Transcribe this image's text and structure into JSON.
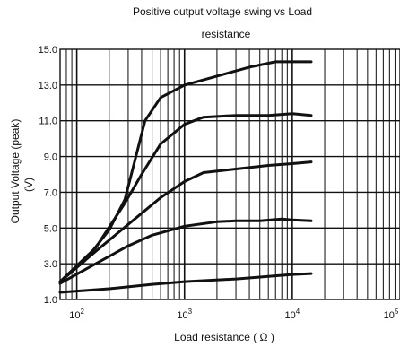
{
  "chart_data": {
    "type": "line",
    "title_line1": "Positive output voltage swing vs Load",
    "title_line2": "resistance",
    "xlabel": "Load resistance ( Ω )",
    "ylabel_line1": "Output Voltage (peak)",
    "ylabel_line2": "(V)",
    "x_scale": "log",
    "xlim": [
      70,
      100000
    ],
    "ylim": [
      1.0,
      15.0
    ],
    "grid": true,
    "legend": "none",
    "line_color": "#111111",
    "x_ticks": [
      {
        "label": "10²",
        "base": "10",
        "exp": "2",
        "value": 100
      },
      {
        "label": "10³",
        "base": "10",
        "exp": "3",
        "value": 1000
      },
      {
        "label": "10⁴",
        "base": "10",
        "exp": "4",
        "value": 10000
      },
      {
        "label": "10⁵",
        "base": "10",
        "exp": "5",
        "value": 100000
      }
    ],
    "y_ticks": [
      {
        "label": "1.0",
        "value": 1.0
      },
      {
        "label": "3.0",
        "value": 3.0
      },
      {
        "label": "5.0",
        "value": 5.0
      },
      {
        "label": "7.0",
        "value": 7.0
      },
      {
        "label": "9.0",
        "value": 9.0
      },
      {
        "label": "11.0",
        "value": 11.0
      },
      {
        "label": "13.0",
        "value": 13.0
      },
      {
        "label": "15.0",
        "value": 15.0
      }
    ],
    "series": [
      {
        "x": [
          70,
          120,
          200,
          280,
          350,
          430,
          600,
          1000,
          2000,
          4000,
          7000,
          10000,
          15000
        ],
        "y": [
          2.0,
          3.2,
          4.9,
          6.6,
          8.9,
          11.0,
          12.3,
          13.0,
          13.5,
          14.0,
          14.3,
          14.3,
          14.3
        ]
      },
      {
        "x": [
          70,
          150,
          280,
          400,
          600,
          1000,
          1500,
          3000,
          6000,
          10000,
          15000
        ],
        "y": [
          2.0,
          3.9,
          6.4,
          8.0,
          9.7,
          10.8,
          11.2,
          11.3,
          11.3,
          11.4,
          11.3
        ]
      },
      {
        "x": [
          70,
          150,
          300,
          600,
          1000,
          1500,
          3000,
          6000,
          10000,
          15000
        ],
        "y": [
          2.0,
          3.7,
          5.2,
          6.7,
          7.6,
          8.1,
          8.3,
          8.5,
          8.6,
          8.7
        ]
      },
      {
        "x": [
          70,
          150,
          300,
          500,
          1000,
          2000,
          3000,
          5000,
          8000,
          10000,
          15000
        ],
        "y": [
          1.9,
          3.0,
          4.0,
          4.6,
          5.1,
          5.35,
          5.4,
          5.4,
          5.5,
          5.45,
          5.4
        ]
      },
      {
        "x": [
          70,
          200,
          500,
          1000,
          3000,
          10000,
          15000
        ],
        "y": [
          1.4,
          1.6,
          1.85,
          2.0,
          2.15,
          2.4,
          2.45
        ]
      }
    ]
  }
}
